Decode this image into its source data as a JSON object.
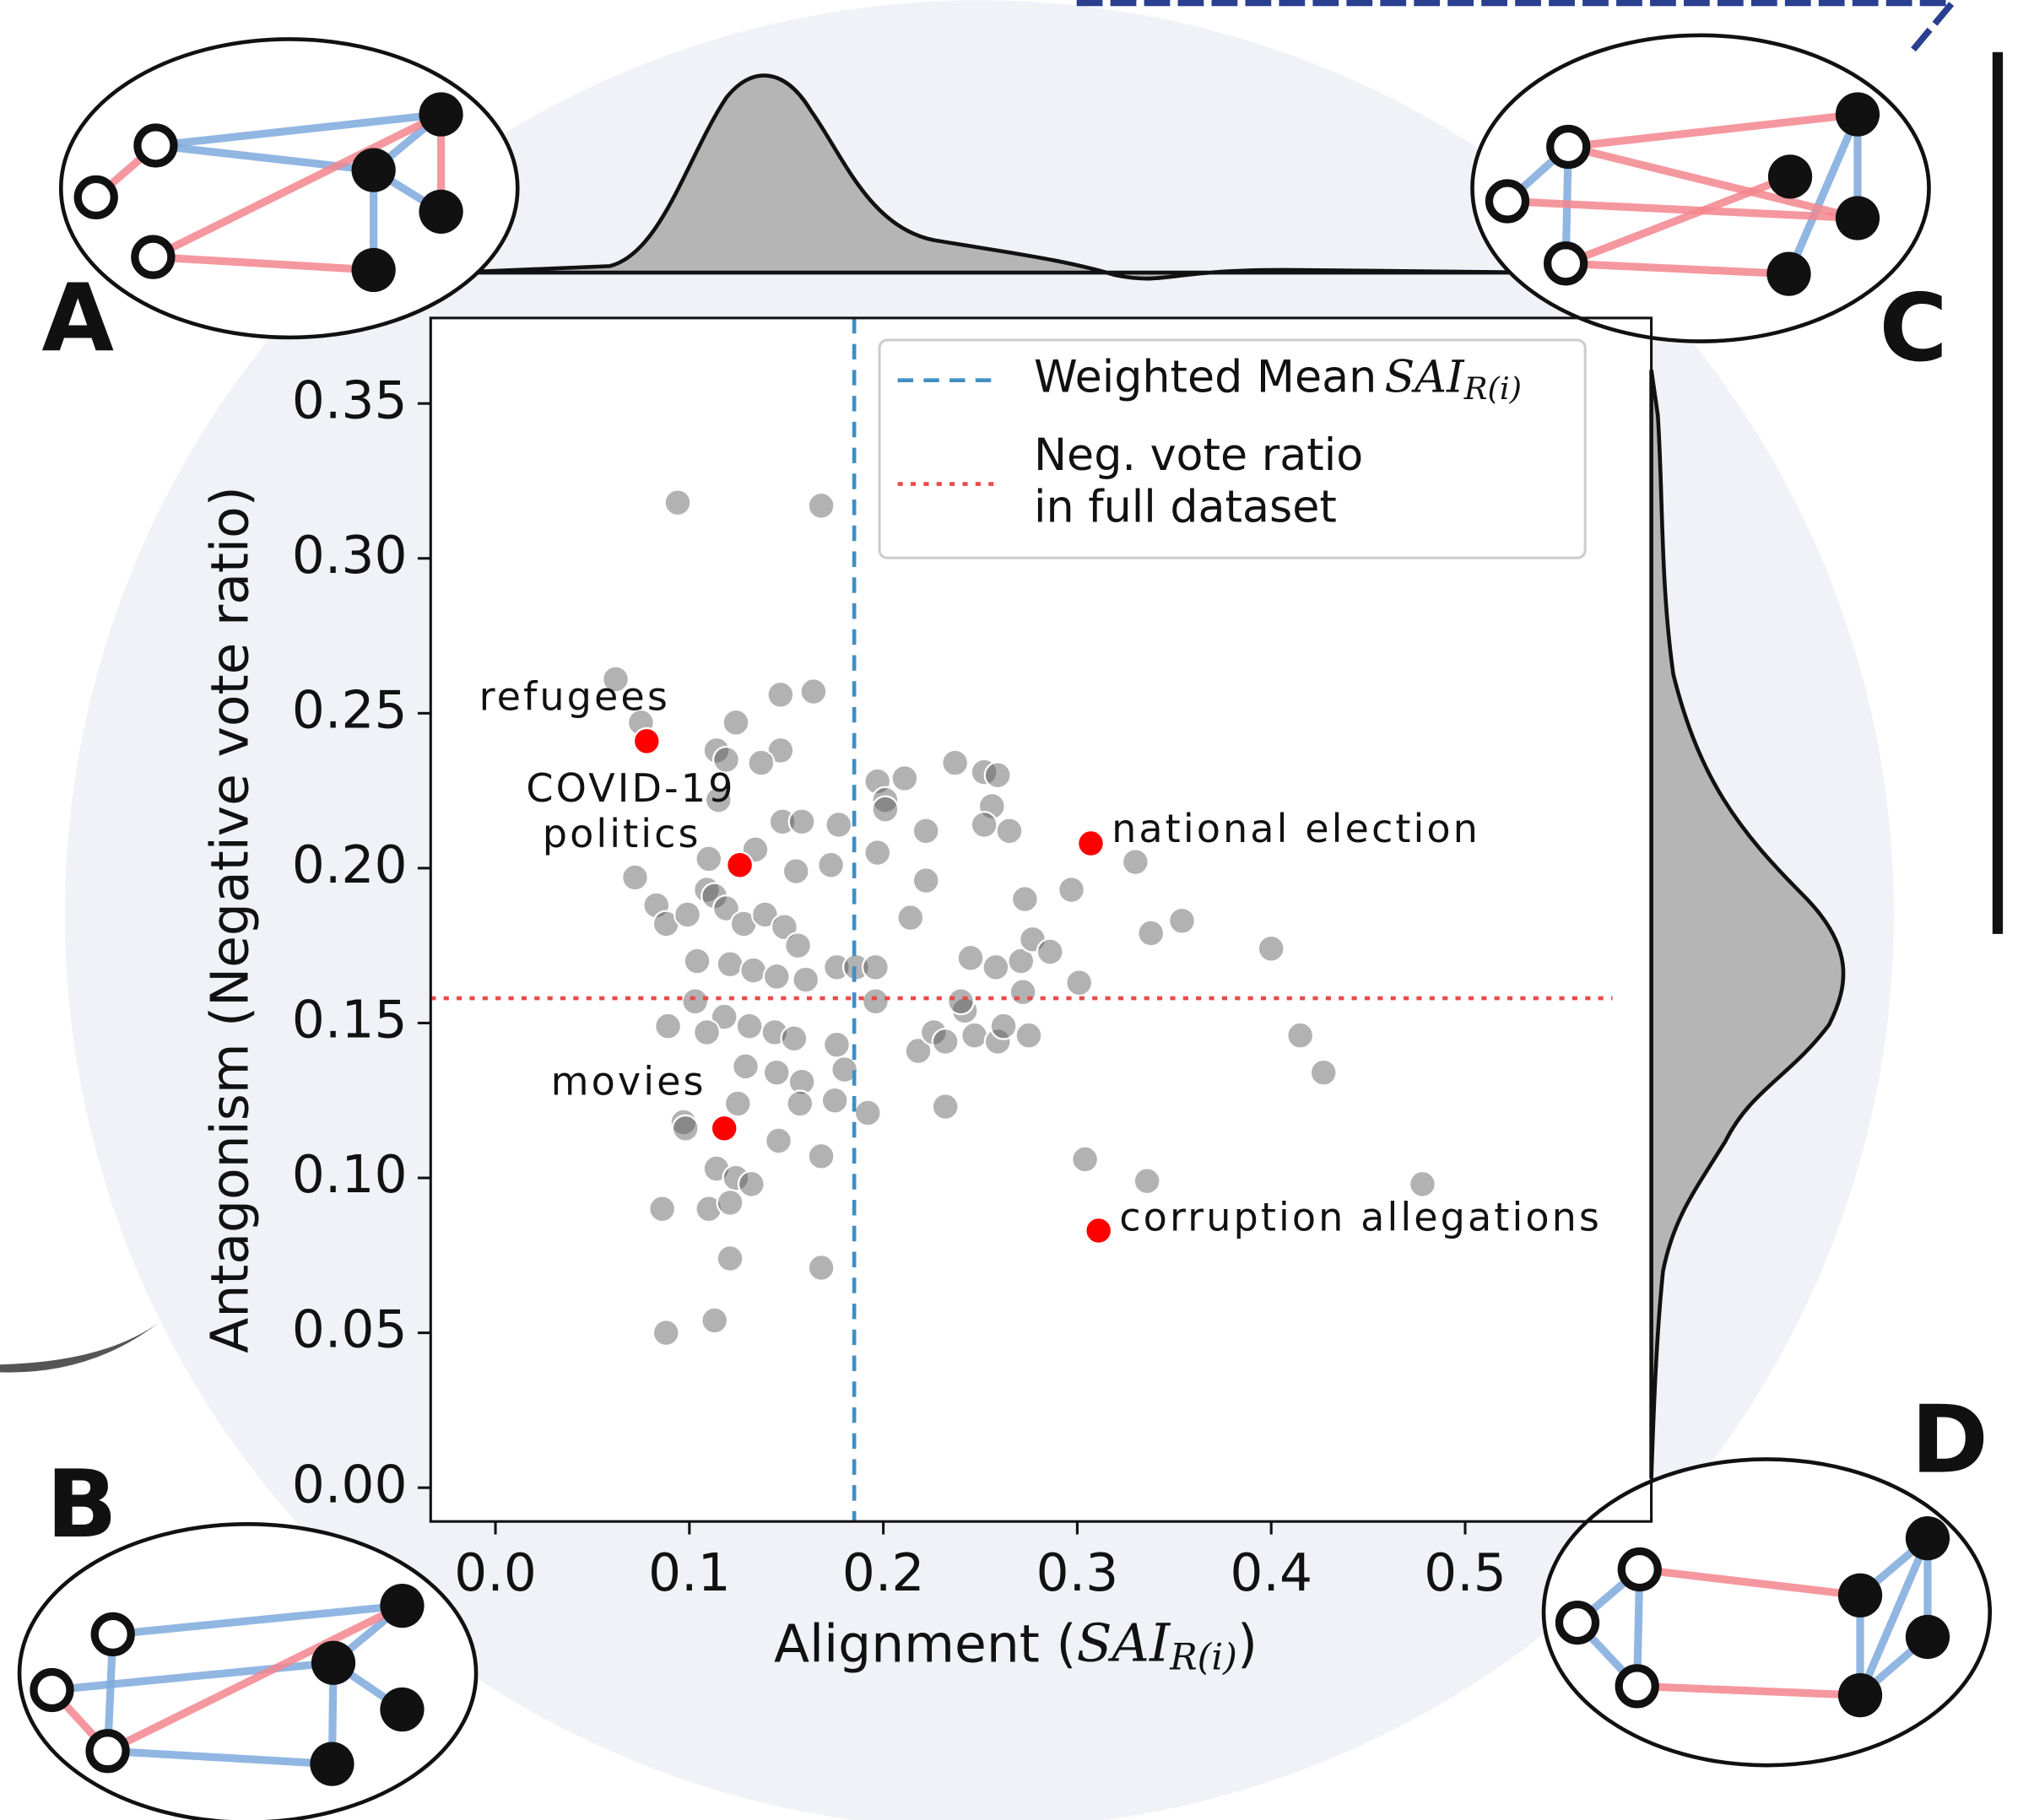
{
  "chart_data": {
    "type": "scatter",
    "x_label": {
      "text": "Alignment (",
      "math": "SAI",
      "math_sub": "R(i)",
      "close": ")"
    },
    "y_label": "Antagonism (Negative vote ratio)",
    "xlim": [
      -0.0334,
      0.596
    ],
    "ylim": [
      -0.0109,
      0.3776
    ],
    "xticks": [
      {
        "value": 0,
        "label": "0.0"
      },
      0.1,
      0.2,
      0.3,
      0.4,
      0.5
    ],
    "yticks": [
      {
        "value": 0,
        "label": "0.00"
      },
      0.05,
      {
        "value": 0.1,
        "label": "0.10"
      },
      0.15,
      {
        "value": 0.2,
        "label": "0.20"
      },
      0.25,
      {
        "value": 0.3,
        "label": "0.30"
      },
      0.35
    ],
    "points": {
      "color": "#555555",
      "x": [
        0.094,
        0.168,
        0.062,
        0.075,
        0.147,
        0.164,
        0.124,
        0.114,
        0.119,
        0.147,
        0.137,
        0.197,
        0.211,
        0.237,
        0.252,
        0.259,
        0.201,
        0.256,
        0.222,
        0.265,
        0.252,
        0.201,
        0.115,
        0.148,
        0.158,
        0.177,
        0.134,
        0.155,
        0.173,
        0.197,
        0.11,
        0.072,
        0.083,
        0.088,
        0.099,
        0.109,
        0.113,
        0.119,
        0.128,
        0.139,
        0.149,
        0.156,
        0.104,
        0.121,
        0.133,
        0.145,
        0.16,
        0.176,
        0.186,
        0.196,
        0.103,
        0.118,
        0.131,
        0.144,
        0.154,
        0.109,
        0.089,
        0.176,
        0.18,
        0.145,
        0.129,
        0.158,
        0.175,
        0.157,
        0.097,
        0.098,
        0.125,
        0.146,
        0.168,
        0.114,
        0.124,
        0.132,
        0.11,
        0.121,
        0.086,
        0.121,
        0.168,
        0.113,
        0.088,
        0.192,
        0.196,
        0.218,
        0.226,
        0.232,
        0.232,
        0.242,
        0.245,
        0.24,
        0.247,
        0.259,
        0.258,
        0.262,
        0.272,
        0.275,
        0.271,
        0.273,
        0.277,
        0.286,
        0.297,
        0.301,
        0.304,
        0.33,
        0.338,
        0.354,
        0.336,
        0.4,
        0.415,
        0.427,
        0.478,
        0.222,
        0.214
      ],
      "y": [
        0.318,
        0.317,
        0.261,
        0.247,
        0.256,
        0.257,
        0.247,
        0.238,
        0.235,
        0.238,
        0.234,
        0.228,
        0.229,
        0.234,
        0.231,
        0.23,
        0.222,
        0.22,
        0.212,
        0.212,
        0.214,
        0.219,
        0.222,
        0.215,
        0.215,
        0.214,
        0.206,
        0.199,
        0.201,
        0.205,
        0.203,
        0.197,
        0.188,
        0.182,
        0.185,
        0.193,
        0.191,
        0.187,
        0.182,
        0.185,
        0.181,
        0.175,
        0.17,
        0.169,
        0.167,
        0.165,
        0.164,
        0.168,
        0.168,
        0.168,
        0.157,
        0.152,
        0.149,
        0.147,
        0.145,
        0.147,
        0.149,
        0.143,
        0.135,
        0.134,
        0.136,
        0.131,
        0.125,
        0.124,
        0.118,
        0.116,
        0.124,
        0.112,
        0.107,
        0.103,
        0.1,
        0.098,
        0.09,
        0.092,
        0.09,
        0.074,
        0.071,
        0.054,
        0.05,
        0.121,
        0.157,
        0.141,
        0.147,
        0.123,
        0.144,
        0.154,
        0.171,
        0.157,
        0.146,
        0.144,
        0.168,
        0.149,
        0.16,
        0.146,
        0.17,
        0.19,
        0.177,
        0.173,
        0.193,
        0.163,
        0.106,
        0.202,
        0.179,
        0.183,
        0.099,
        0.174,
        0.146,
        0.134,
        0.098,
        0.196,
        0.184
      ]
    },
    "highlights": {
      "color": "#ff0000",
      "x": [
        0.078,
        0.126,
        0.307,
        0.118,
        0.311
      ],
      "y": [
        0.241,
        0.201,
        0.208,
        0.116,
        0.083
      ],
      "labels": [
        [
          "refugees"
        ],
        [
          "COVID-19",
          "politics"
        ],
        [
          "national election"
        ],
        [
          "movies"
        ],
        [
          "corruption allegations"
        ]
      ]
    },
    "reference_lines": [
      {
        "name": [
          "Weighted Mean"
        ],
        "math": "SAI",
        "math_sub": "R(i)",
        "axis": "x",
        "value": 0.185,
        "color": "#3f8fc4",
        "dash": "12,8"
      },
      {
        "name": [
          "Neg. vote ratio",
          " in full dataset"
        ],
        "axis": "y",
        "value": 0.158,
        "color": "#e84a4a",
        "dash": "4,6"
      }
    ],
    "legend": "upper right"
  },
  "panels": [
    "A",
    "B",
    "C",
    "D"
  ]
}
